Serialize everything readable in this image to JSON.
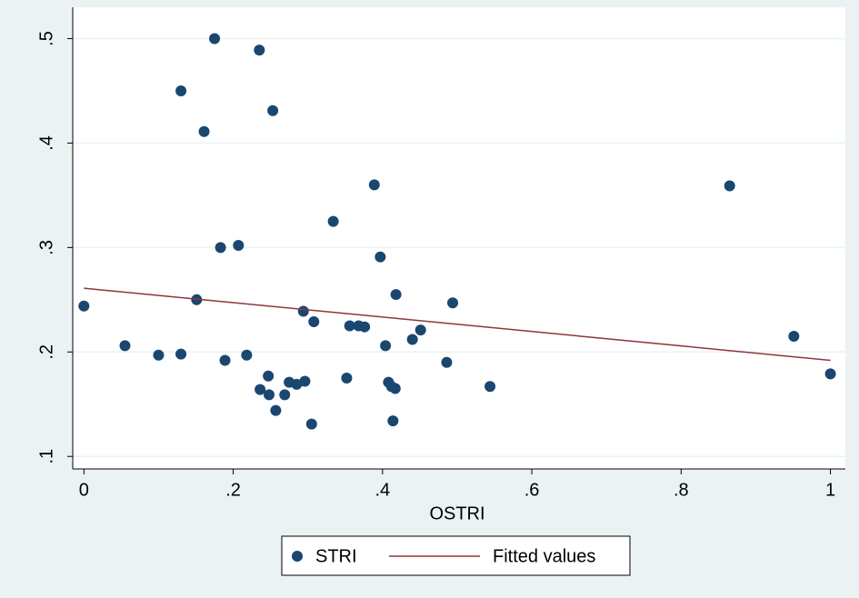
{
  "chart_data": {
    "type": "scatter",
    "x_label": "OSTRI",
    "xlim": [
      -0.015,
      1.02
    ],
    "ylim": [
      0.088,
      0.53
    ],
    "xticks": [
      0,
      {
        "value": 0.2,
        "label": ".2"
      },
      {
        "value": 0.4,
        "label": ".4"
      },
      {
        "value": 0.6,
        "label": ".6"
      },
      {
        "value": 0.8,
        "label": ".8"
      },
      1
    ],
    "yticks": [
      {
        "value": 0.1,
        "label": ".1"
      },
      {
        "value": 0.2,
        "label": ".2"
      },
      {
        "value": 0.3,
        "label": ".3"
      },
      {
        "value": 0.4,
        "label": ".4"
      },
      {
        "value": 0.5,
        "label": ".5"
      }
    ],
    "grid": true,
    "series": [
      {
        "name": "STRI",
        "type": "scatter",
        "color": "#1a476f",
        "x": [
          0,
          0.055,
          0.1,
          0.13,
          0.13,
          0.151,
          0.161,
          0.175,
          0.183,
          0.189,
          0.207,
          0.218,
          0.235,
          0.236,
          0.247,
          0.248,
          0.253,
          0.257,
          0.269,
          0.275,
          0.285,
          0.294,
          0.296,
          0.305,
          0.308,
          0.334,
          0.352,
          0.356,
          0.368,
          0.376,
          0.389,
          0.397,
          0.404,
          0.408,
          0.412,
          0.414,
          0.417,
          0.418,
          0.44,
          0.451,
          0.486,
          0.494,
          0.544,
          0.865,
          0.951,
          1.0
        ],
        "values": [
          0.244,
          0.206,
          0.197,
          0.45,
          0.198,
          0.25,
          0.411,
          0.5,
          0.3,
          0.192,
          0.302,
          0.197,
          0.489,
          0.164,
          0.177,
          0.159,
          0.431,
          0.144,
          0.159,
          0.171,
          0.169,
          0.239,
          0.172,
          0.131,
          0.229,
          0.325,
          0.175,
          0.225,
          0.225,
          0.224,
          0.36,
          0.291,
          0.206,
          0.171,
          0.167,
          0.134,
          0.165,
          0.255,
          0.212,
          0.221,
          0.19,
          0.247,
          0.167,
          0.359,
          0.215,
          0.179
        ]
      },
      {
        "name": "Fitted values",
        "type": "line",
        "color": "#90353b",
        "x": [
          0,
          1
        ],
        "values": [
          0.261,
          0.192
        ]
      }
    ]
  }
}
